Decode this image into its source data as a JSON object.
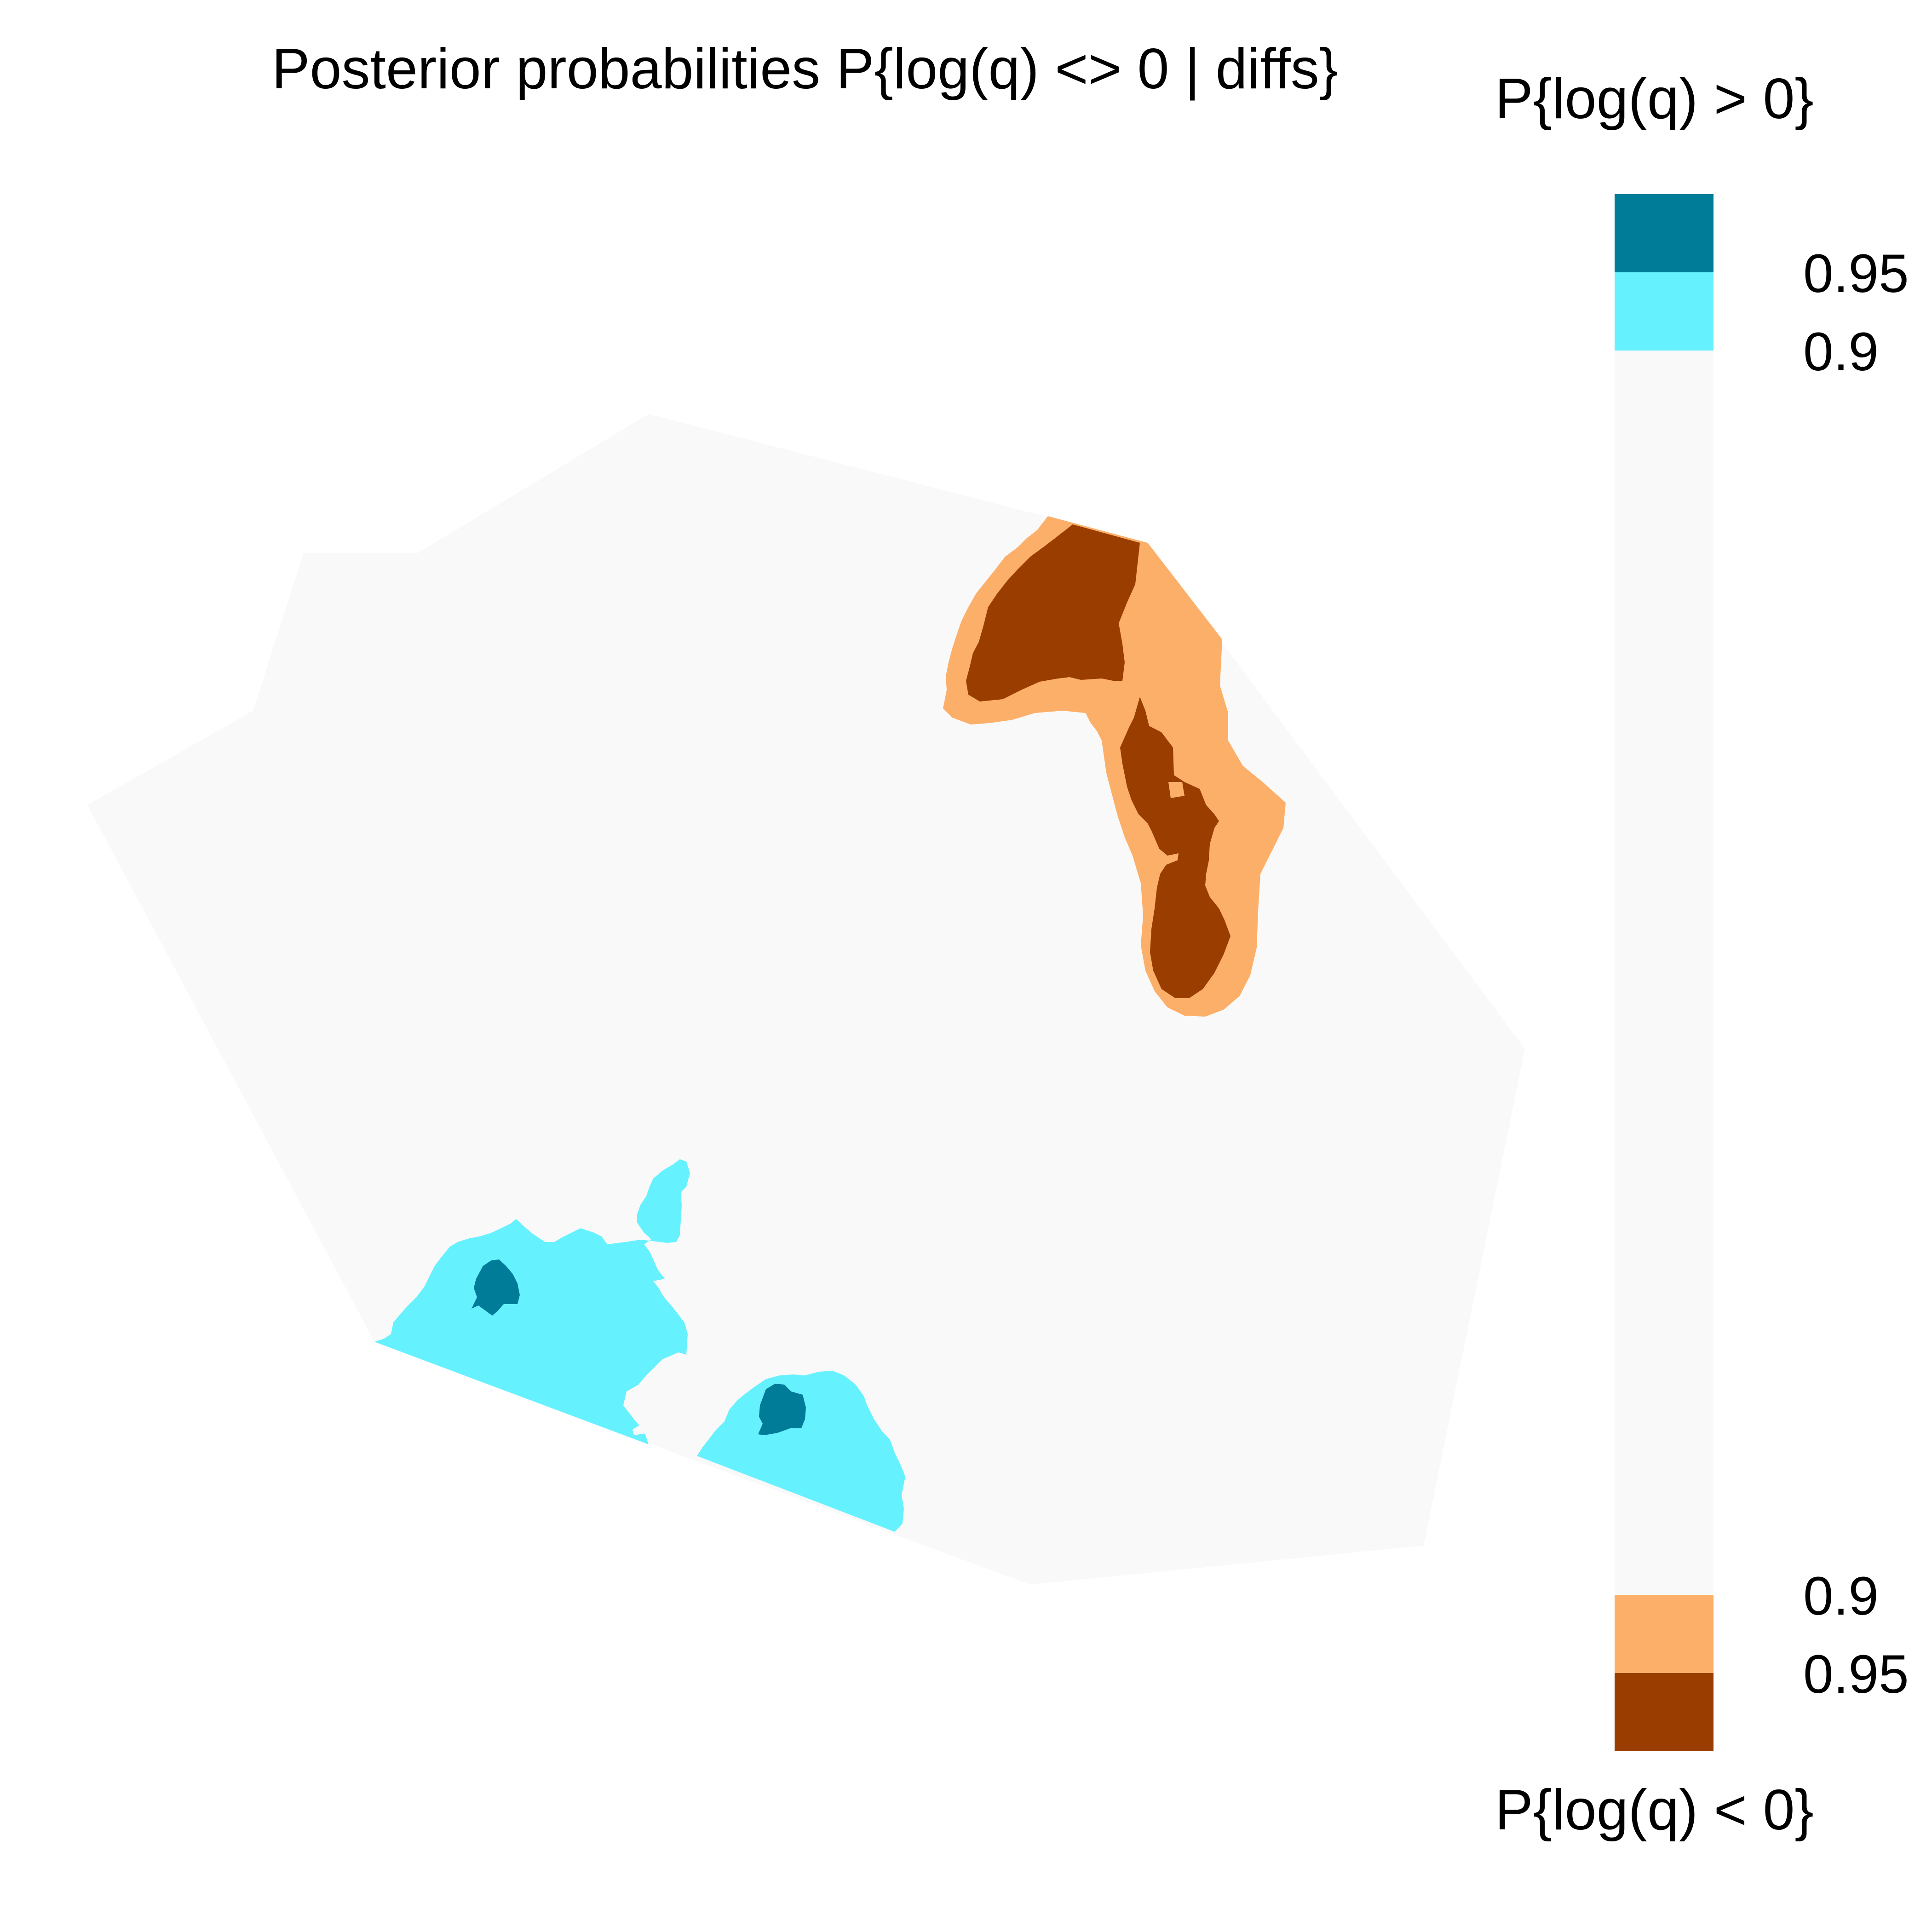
{
  "chart_data": {
    "type": "heatmap",
    "title": "Posterior probabilities P{log(q) <> 0 | diffs}",
    "legend": {
      "top_title": "P{log(q) > 0}",
      "bottom_title": "P{log(q) < 0}",
      "placement": "right",
      "top_ticks": [
        "0.95",
        "0.9"
      ],
      "bottom_ticks": [
        "0.9",
        "0.95"
      ],
      "bins": [
        {
          "label": "P{log(q) > 0} >= 0.95",
          "color": "#007C99"
        },
        {
          "label": "P{log(q) > 0} 0.9 - 0.95",
          "color": "#66F1FF"
        },
        {
          "label": "neither >= 0.9",
          "color": "#F9F9F9"
        },
        {
          "label": "P{log(q) < 0} 0.9 - 0.95",
          "color": "#FCAF69"
        },
        {
          "label": "P{log(q) < 0} >= 0.95",
          "color": "#993D00"
        }
      ]
    },
    "regions": [
      {
        "name": "north-east",
        "direction": "log(q) < 0",
        "max_level": "0.95"
      },
      {
        "name": "south-west",
        "direction": "log(q) > 0",
        "max_level": "0.95"
      },
      {
        "name": "south-center",
        "direction": "log(q) > 0",
        "max_level": "0.95"
      }
    ],
    "grid": false,
    "axes": "none"
  },
  "colors": {
    "habitat": "#F9F9F9",
    "pos_strong": "#007C99",
    "pos_weak": "#66F1FF",
    "neg_weak": "#FCAF69",
    "neg_strong": "#993D00"
  }
}
